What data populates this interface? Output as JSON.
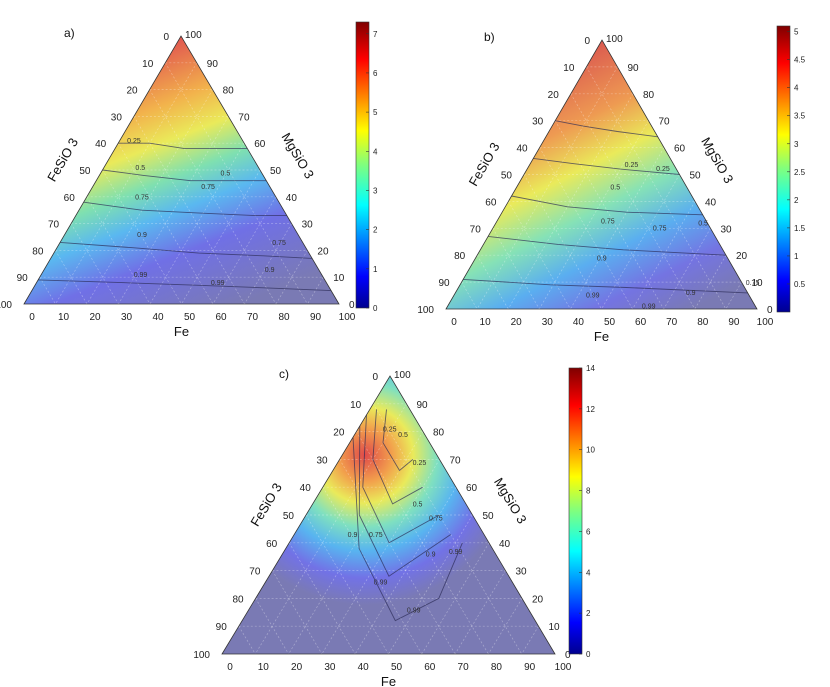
{
  "chart_data": [
    {
      "type": "heatmap",
      "panel_label": "a)",
      "left_axis_label": "FeSiO 3",
      "right_axis_label": "MgSiO 3",
      "bottom_axis_label": "Fe",
      "left_ticks": [
        "0",
        "10",
        "20",
        "30",
        "40",
        "50",
        "60",
        "70",
        "80",
        "90",
        "100"
      ],
      "right_ticks": [
        "100",
        "90",
        "80",
        "70",
        "60",
        "50",
        "40",
        "30",
        "20",
        "10",
        "0"
      ],
      "bottom_ticks": [
        "0",
        "10",
        "20",
        "30",
        "40",
        "50",
        "60",
        "70",
        "80",
        "90",
        "100"
      ],
      "colorbar": {
        "min": 0,
        "max": 7.3,
        "ticks": [
          0,
          1,
          2,
          3,
          4,
          5,
          6,
          7
        ]
      },
      "contours": [
        0.25,
        0.5,
        0.75,
        0.9,
        0.99
      ],
      "contour_labels": [
        {
          "text": "0.25",
          "pos": [
            0.35,
            0.05,
            0.6
          ]
        },
        {
          "text": "0.5",
          "pos": [
            0.38,
            0.12,
            0.5
          ]
        },
        {
          "text": "0.75",
          "pos": [
            0.43,
            0.18,
            0.39
          ]
        },
        {
          "text": "0.9",
          "pos": [
            0.5,
            0.25,
            0.25
          ]
        },
        {
          "text": "0.99",
          "pos": [
            0.58,
            0.32,
            0.1
          ]
        },
        {
          "text": "0.5",
          "pos": [
            0.12,
            0.4,
            0.48
          ]
        },
        {
          "text": "0.75",
          "pos": [
            0.2,
            0.37,
            0.43
          ]
        },
        {
          "text": "0.75",
          "pos": [
            0.08,
            0.7,
            0.22
          ]
        },
        {
          "text": "0.9",
          "pos": [
            0.16,
            0.72,
            0.12
          ]
        },
        {
          "text": "0.99",
          "pos": [
            0.35,
            0.58,
            0.07
          ]
        }
      ]
    },
    {
      "type": "heatmap",
      "panel_label": "b)",
      "left_axis_label": "FeSiO 3",
      "right_axis_label": "MgSiO 3",
      "bottom_axis_label": "Fe",
      "left_ticks": [
        "0",
        "10",
        "20",
        "30",
        "40",
        "50",
        "60",
        "70",
        "80",
        "90",
        "100"
      ],
      "right_ticks": [
        "100",
        "90",
        "80",
        "70",
        "60",
        "50",
        "40",
        "30",
        "20",
        "10",
        "0"
      ],
      "bottom_ticks": [
        "0",
        "10",
        "20",
        "30",
        "40",
        "50",
        "60",
        "70",
        "80",
        "90",
        "100"
      ],
      "colorbar": {
        "min": 0,
        "max": 5.1,
        "ticks": [
          0.5,
          1,
          1.5,
          2,
          2.5,
          3,
          3.5,
          4,
          4.5,
          5
        ]
      },
      "contours": [
        0.25,
        0.5,
        0.75,
        0.9,
        0.99
      ],
      "contour_labels": [
        {
          "text": "0.25",
          "pos": [
            0.42,
            0.03,
            0.7
          ]
        },
        {
          "text": "0.5",
          "pos": [
            0.42,
            0.12,
            0.56
          ]
        },
        {
          "text": "0.75",
          "pos": [
            0.47,
            0.2,
            0.41
          ]
        },
        {
          "text": "0.9",
          "pos": [
            0.54,
            0.27,
            0.26
          ]
        },
        {
          "text": "0.99",
          "pos": [
            0.6,
            0.35,
            0.1
          ]
        },
        {
          "text": "0.25",
          "pos": [
            0.14,
            0.34,
            0.57
          ]
        },
        {
          "text": "0.5",
          "pos": [
            0.13,
            0.55,
            0.38
          ]
        },
        {
          "text": "0.75",
          "pos": [
            0.26,
            0.44,
            0.35
          ]
        },
        {
          "text": "0.75",
          "pos": [
            0.1,
            0.8,
            0.17
          ]
        },
        {
          "text": "0.9",
          "pos": [
            0.28,
            0.66,
            0.11
          ]
        },
        {
          "text": "0.99",
          "pos": [
            0.44,
            0.55,
            0.06
          ]
        }
      ]
    },
    {
      "type": "heatmap",
      "panel_label": "c)",
      "left_axis_label": "FeSiO 3",
      "right_axis_label": "MgSiO 3",
      "bottom_axis_label": "Fe",
      "left_ticks": [
        "0",
        "10",
        "20",
        "30",
        "40",
        "50",
        "60",
        "70",
        "80",
        "90",
        "100"
      ],
      "right_ticks": [
        "100",
        "90",
        "80",
        "70",
        "60",
        "50",
        "40",
        "30",
        "20",
        "10",
        "0"
      ],
      "bottom_ticks": [
        "0",
        "10",
        "20",
        "30",
        "40",
        "50",
        "60",
        "70",
        "80",
        "90",
        "100"
      ],
      "colorbar": {
        "min": 0,
        "max": 14,
        "ticks": [
          0,
          2,
          4,
          6,
          8,
          10,
          12,
          14
        ]
      },
      "contours": [
        0.25,
        0.5,
        0.75,
        0.9,
        0.99
      ],
      "contour_labels": [
        {
          "text": "0.25",
          "pos": [
            0.1,
            0.1,
            0.8
          ]
        },
        {
          "text": "0.5",
          "pos": [
            0.07,
            0.15,
            0.78
          ]
        },
        {
          "text": "0.25",
          "pos": [
            0.07,
            0.25,
            0.68
          ]
        },
        {
          "text": "0.5",
          "pos": [
            0.15,
            0.32,
            0.53
          ]
        },
        {
          "text": "0.75",
          "pos": [
            0.12,
            0.4,
            0.48
          ]
        },
        {
          "text": "0.9",
          "pos": [
            0.2,
            0.45,
            0.35
          ]
        },
        {
          "text": "0.99",
          "pos": [
            0.12,
            0.52,
            0.36
          ]
        },
        {
          "text": "0.75",
          "pos": [
            0.33,
            0.25,
            0.42
          ]
        },
        {
          "text": "0.9",
          "pos": [
            0.4,
            0.18,
            0.42
          ]
        },
        {
          "text": "0.99",
          "pos": [
            0.4,
            0.35,
            0.25
          ]
        },
        {
          "text": "0.99",
          "pos": [
            0.35,
            0.5,
            0.15
          ]
        }
      ]
    }
  ]
}
